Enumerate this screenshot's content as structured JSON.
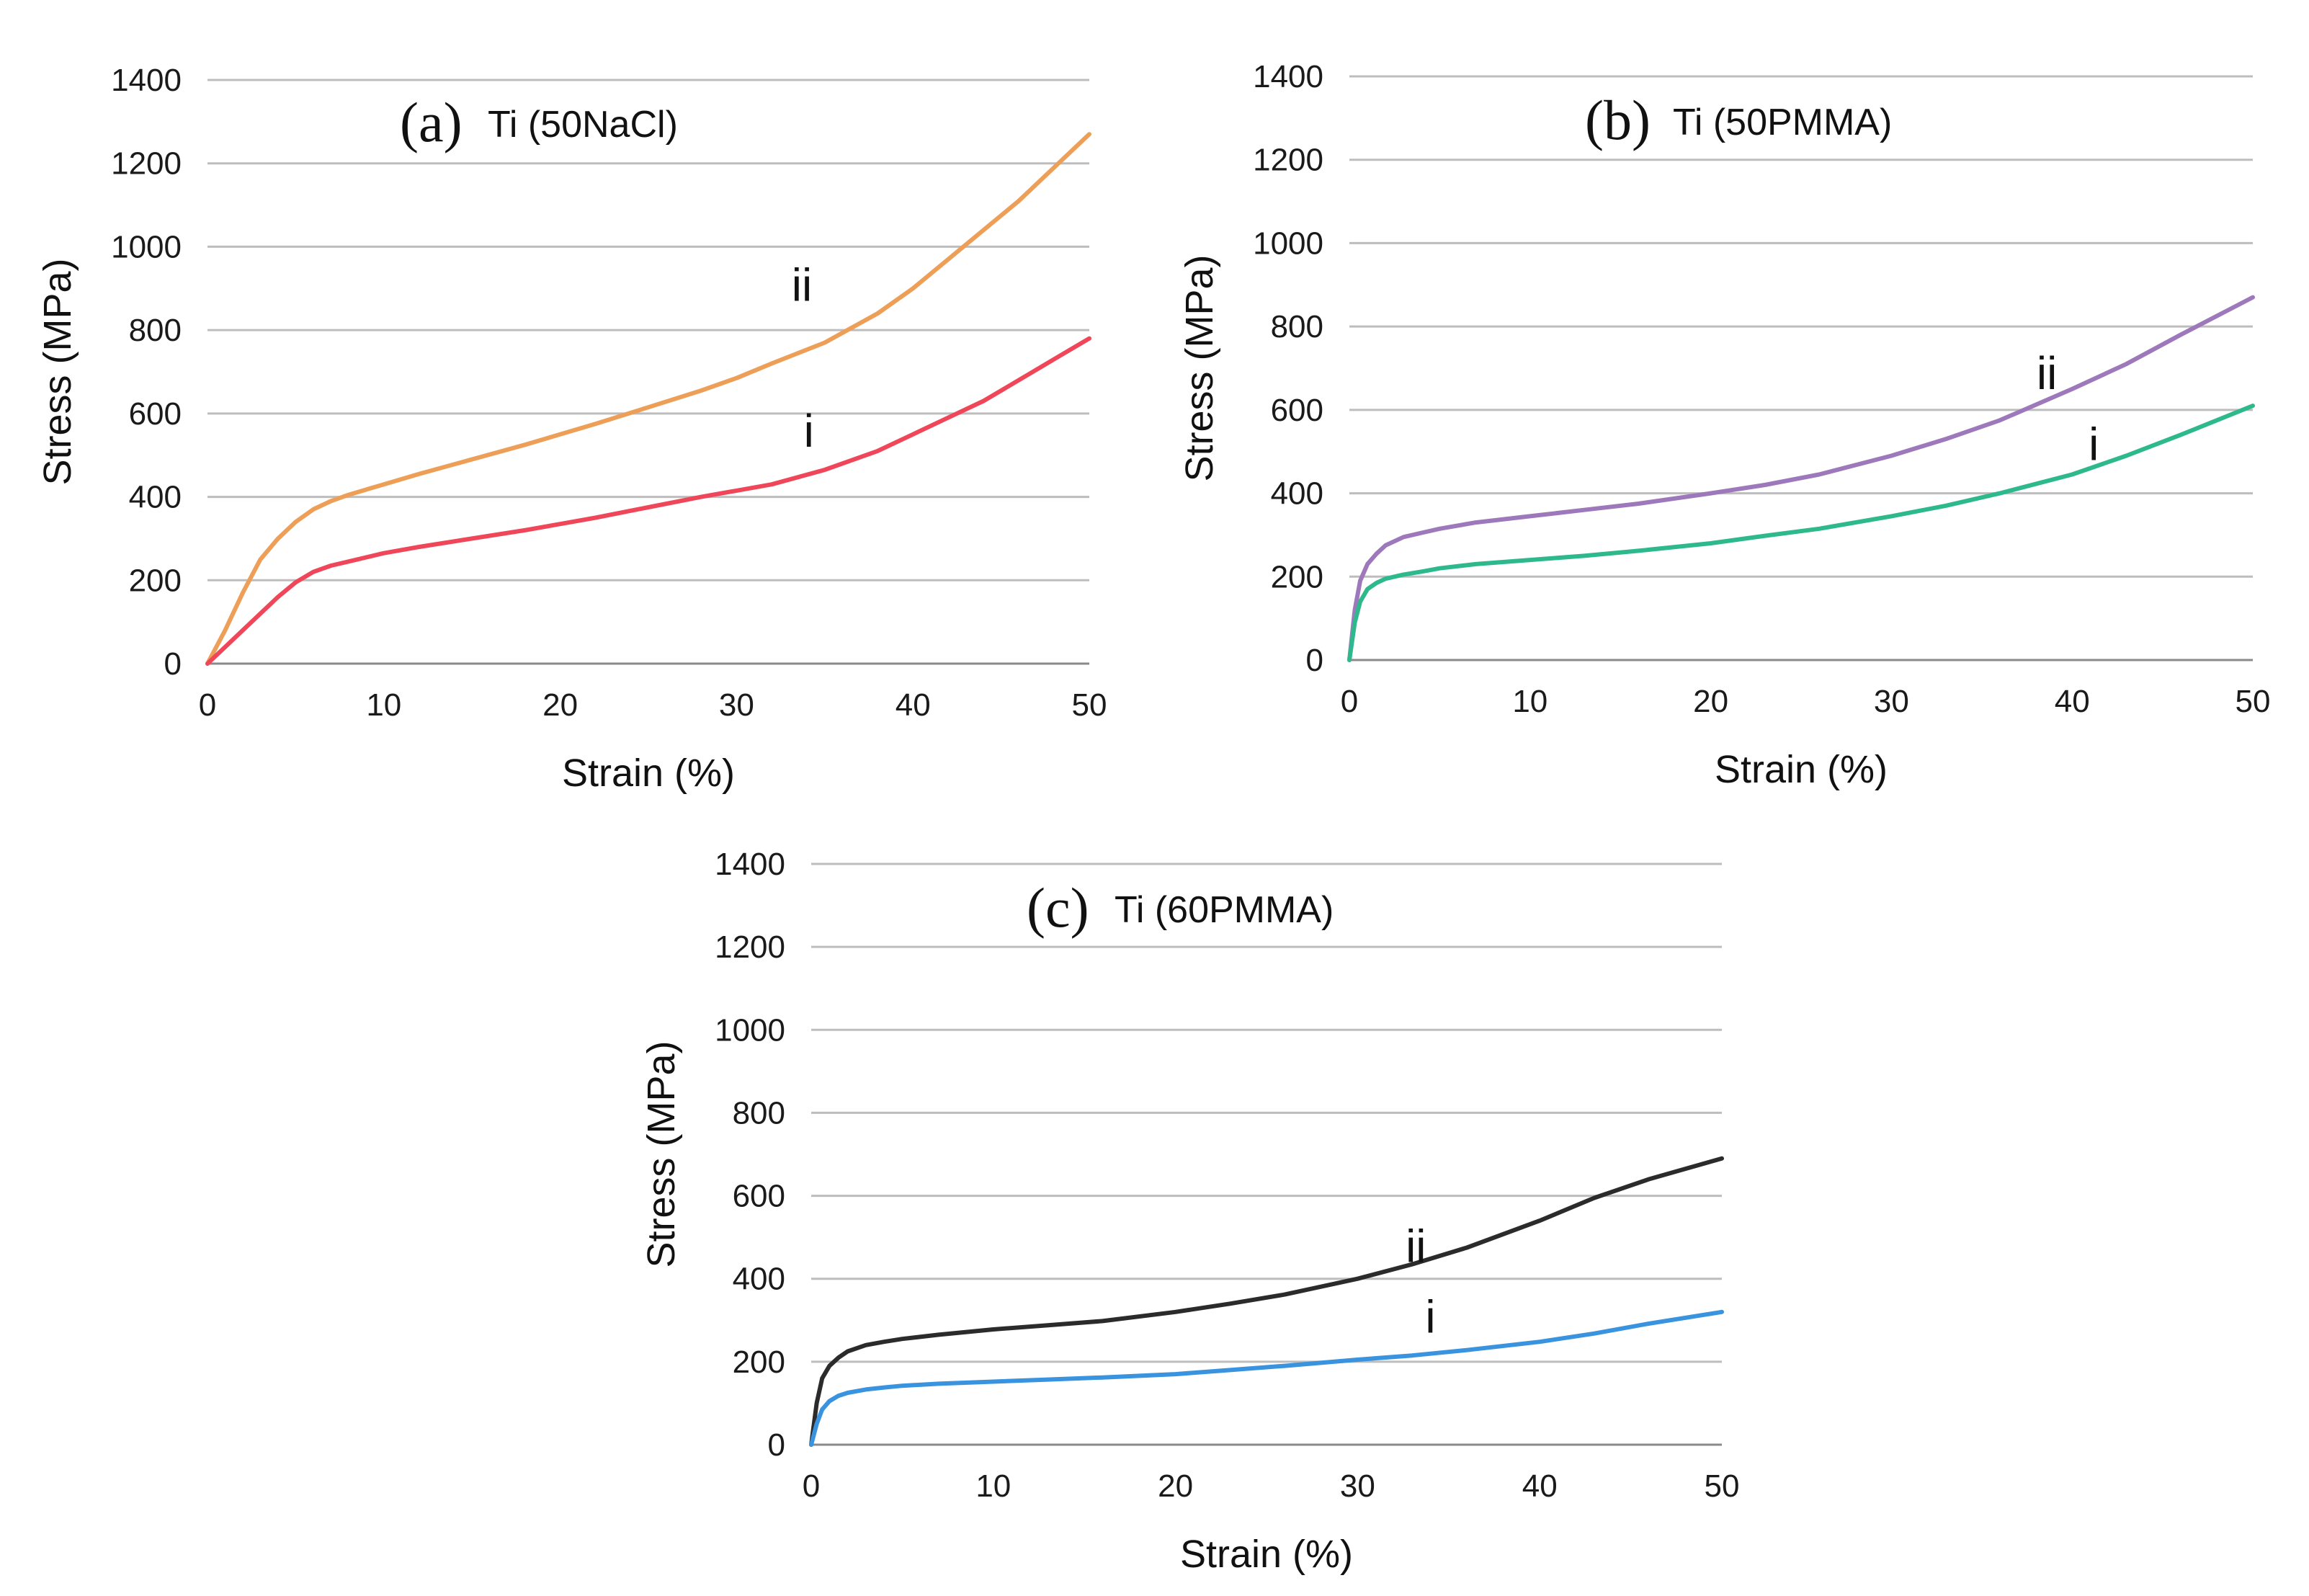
{
  "chart_data": [
    {
      "type": "line",
      "panel_letter": "(a)",
      "title": "Ti (50NaCl)",
      "xlabel": "Strain (%)",
      "ylabel": "Stress (MPa)",
      "xlim": [
        0,
        50
      ],
      "ylim": [
        0,
        1400
      ],
      "x_ticks": [
        "0",
        "10",
        "20",
        "30",
        "40",
        "50"
      ],
      "y_ticks": [
        "0",
        "200",
        "400",
        "600",
        "800",
        "1000",
        "1200",
        "1400"
      ],
      "grid": true,
      "series": [
        {
          "name": "ii",
          "color": "#ee9f57",
          "label_at": [
            33.7,
            870
          ],
          "x": [
            0,
            1,
            2,
            3,
            4,
            5,
            6,
            7,
            8,
            10,
            12,
            15,
            18,
            20,
            22,
            25,
            28,
            30,
            32,
            35,
            38,
            40,
            42,
            44,
            46,
            48,
            50
          ],
          "y": [
            0,
            80,
            170,
            250,
            300,
            340,
            370,
            390,
            405,
            430,
            455,
            490,
            525,
            550,
            575,
            615,
            655,
            685,
            720,
            770,
            840,
            900,
            970,
            1040,
            1110,
            1190,
            1270
          ]
        },
        {
          "name": "i",
          "color": "#f0465a",
          "label_at": [
            34.1,
            520
          ],
          "x": [
            0,
            1,
            2,
            3,
            4,
            5,
            6,
            7,
            8,
            10,
            12,
            15,
            18,
            20,
            22,
            25,
            28,
            30,
            32,
            35,
            38,
            40,
            42,
            44,
            46,
            48,
            50
          ],
          "y": [
            0,
            40,
            80,
            120,
            160,
            195,
            220,
            235,
            245,
            265,
            280,
            300,
            320,
            335,
            350,
            375,
            400,
            415,
            430,
            465,
            510,
            550,
            590,
            630,
            680,
            730,
            780
          ]
        }
      ]
    },
    {
      "type": "line",
      "panel_letter": "(b)",
      "title": "Ti (50PMMA)",
      "xlabel": "Strain (%)",
      "ylabel": "Stress (MPa)",
      "xlim": [
        0,
        50
      ],
      "ylim": [
        0,
        1400
      ],
      "x_ticks": [
        "0",
        "10",
        "20",
        "30",
        "40",
        "50"
      ],
      "y_ticks": [
        "0",
        "200",
        "400",
        "600",
        "800",
        "1000",
        "1200",
        "1400"
      ],
      "grid": true,
      "series": [
        {
          "name": "ii",
          "color": "#9d78bb",
          "label_at": [
            38.6,
            650
          ],
          "x": [
            0,
            0.3,
            0.6,
            1,
            1.5,
            2,
            3,
            4,
            5,
            7,
            10,
            13,
            16,
            20,
            23,
            26,
            30,
            33,
            36,
            40,
            43,
            46,
            50
          ],
          "y": [
            0,
            120,
            190,
            230,
            255,
            275,
            295,
            305,
            315,
            330,
            345,
            360,
            375,
            400,
            420,
            445,
            490,
            530,
            575,
            650,
            710,
            780,
            870
          ]
        },
        {
          "name": "i",
          "color": "#2eb98d",
          "label_at": [
            41.2,
            480
          ],
          "x": [
            0,
            0.3,
            0.6,
            1,
            1.5,
            2,
            3,
            4,
            5,
            7,
            10,
            13,
            16,
            20,
            23,
            26,
            30,
            33,
            36,
            40,
            43,
            46,
            50
          ],
          "y": [
            0,
            90,
            140,
            170,
            185,
            195,
            205,
            212,
            220,
            230,
            240,
            250,
            262,
            280,
            298,
            315,
            345,
            370,
            400,
            445,
            490,
            540,
            610
          ]
        }
      ]
    },
    {
      "type": "line",
      "panel_letter": "(c)",
      "title": "Ti (60PMMA)",
      "xlabel": "Strain (%)",
      "ylabel": "Stress (MPa)",
      "xlim": [
        0,
        50
      ],
      "ylim": [
        0,
        1400
      ],
      "x_ticks": [
        "0",
        "10",
        "20",
        "30",
        "40",
        "50"
      ],
      "y_ticks": [
        "0",
        "200",
        "400",
        "600",
        "800",
        "1000",
        "1200",
        "1400"
      ],
      "grid": true,
      "series": [
        {
          "name": "ii",
          "color": "#2b2b2b",
          "label_at": [
            33.2,
            440
          ],
          "x": [
            0,
            0.3,
            0.6,
            1,
            1.5,
            2,
            3,
            4,
            5,
            7,
            10,
            13,
            16,
            20,
            23,
            26,
            30,
            33,
            36,
            40,
            43,
            46,
            50
          ],
          "y": [
            0,
            100,
            160,
            190,
            210,
            225,
            240,
            248,
            255,
            265,
            278,
            288,
            298,
            320,
            340,
            362,
            400,
            435,
            475,
            540,
            595,
            640,
            690
          ]
        },
        {
          "name": "i",
          "color": "#3a93df",
          "label_at": [
            34.0,
            270
          ],
          "x": [
            0,
            0.3,
            0.6,
            1,
            1.5,
            2,
            3,
            4,
            5,
            7,
            10,
            13,
            16,
            20,
            23,
            26,
            30,
            33,
            36,
            40,
            43,
            46,
            50
          ],
          "y": [
            0,
            50,
            85,
            105,
            118,
            125,
            133,
            138,
            142,
            147,
            152,
            157,
            162,
            170,
            180,
            190,
            205,
            215,
            228,
            248,
            268,
            292,
            320
          ]
        }
      ]
    }
  ]
}
